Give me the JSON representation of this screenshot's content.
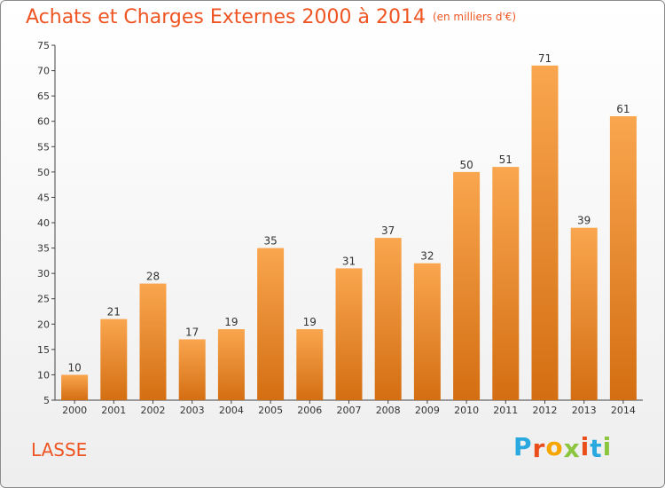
{
  "header": {
    "title": "Achats et Charges Externes 2000 à 2014",
    "subtitle": "(en milliers d'€)"
  },
  "footer": {
    "commune": "LASSE",
    "logo_text": "Proxiti",
    "logo_colors": [
      "#2aa9e0",
      "#e94e1b",
      "#f7a600",
      "#8cc63f",
      "#e94e1b",
      "#2aa9e0",
      "#8cc63f"
    ]
  },
  "chart_data": {
    "type": "bar",
    "title": "Achats et Charges Externes 2000 à 2014",
    "subtitle": "(en milliers d'€)",
    "xlabel": "",
    "ylabel": "",
    "categories": [
      "2000",
      "2001",
      "2002",
      "2003",
      "2004",
      "2005",
      "2006",
      "2007",
      "2008",
      "2009",
      "2010",
      "2011",
      "2012",
      "2013",
      "2014"
    ],
    "values": [
      10,
      21,
      28,
      17,
      19,
      35,
      19,
      31,
      37,
      32,
      50,
      51,
      71,
      39,
      61
    ],
    "ylim": [
      5,
      75
    ],
    "yticks": [
      5,
      10,
      15,
      20,
      25,
      30,
      35,
      40,
      45,
      50,
      55,
      60,
      65,
      70,
      75
    ],
    "grid": false,
    "bar_color_top": "#f9a64f",
    "bar_color_bottom": "#d46e12",
    "data_labels": true
  }
}
